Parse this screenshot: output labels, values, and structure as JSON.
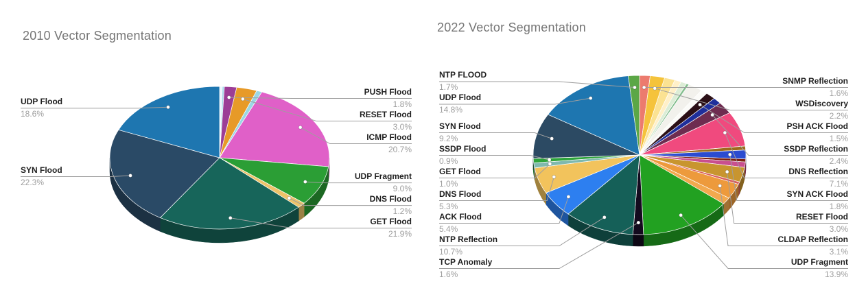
{
  "page": {
    "background": "#ffffff"
  },
  "colors": {
    "title_text": "#757575",
    "label_text": "#1f1f1f",
    "percent_text": "#9e9e9e",
    "leader_line": "#9e9e9e",
    "slice_divider": "#ffffff",
    "callout_dot": "#ffffff"
  },
  "chart_data": [
    {
      "type": "pie",
      "style": "3d",
      "title": "2010 Vector Segmentation",
      "unit": "%",
      "legend_position": "labeled-callouts",
      "slices": [
        {
          "label": "",
          "value": 0.4,
          "color": "#EAF5FC"
        },
        {
          "label": "",
          "value": 0.3,
          "color": "#A5D8E8"
        },
        {
          "label": "PUSH Flood",
          "value": 1.8,
          "color": "#9C3D96"
        },
        {
          "label": "RESET Flood",
          "value": 3.0,
          "color": "#E79A28"
        },
        {
          "label": "",
          "value": 0.8,
          "color": "#9BD7E5"
        },
        {
          "label": "ICMP Flood",
          "value": 20.7,
          "color": "#E060C8"
        },
        {
          "label": "UDP Fragment",
          "value": 9.0,
          "color": "#2B9E35"
        },
        {
          "label": "DNS Flood",
          "value": 1.2,
          "color": "#EDC36A"
        },
        {
          "label": "GET Flood",
          "value": 21.9,
          "color": "#17655A"
        },
        {
          "label": "SYN Flood",
          "value": 22.3,
          "color": "#2A4A66"
        },
        {
          "label": "UDP Flood",
          "value": 18.6,
          "color": "#1E76B0"
        }
      ]
    },
    {
      "type": "pie",
      "style": "3d",
      "title": "2022 Vector Segmentation",
      "unit": "%",
      "legend_position": "labeled-callouts",
      "slices": [
        {
          "label": "SNMP Reflection",
          "value": 1.6,
          "color": "#EC7B6E"
        },
        {
          "label": "WSDiscovery",
          "value": 2.2,
          "color": "#F5C33B"
        },
        {
          "label": "",
          "value": 1.6,
          "color": "#FBE292"
        },
        {
          "label": "",
          "value": 1.0,
          "color": "#FFF0C8"
        },
        {
          "label": "",
          "value": 0.9,
          "color": "#DCEDD6"
        },
        {
          "label": "",
          "value": 0.4,
          "color": "#83BE8E"
        },
        {
          "label": "",
          "value": 2.2,
          "color": "#F2F1EC"
        },
        {
          "label": "",
          "value": 1.0,
          "color": "#FBFBF8"
        },
        {
          "label": "PSH ACK Flood",
          "value": 1.5,
          "color": "#2B0F16"
        },
        {
          "label": "",
          "value": 1.3,
          "color": "#1F2F9B"
        },
        {
          "label": "SSDP Reflection",
          "value": 2.4,
          "color": "#6E2C50"
        },
        {
          "label": "DNS Reflection",
          "value": 7.1,
          "color": "#F04A7E"
        },
        {
          "label": "",
          "value": 0.8,
          "color": "#9C6B1D"
        },
        {
          "label": "SYN ACK Flood",
          "value": 1.8,
          "color": "#2B4BD0"
        },
        {
          "label": "",
          "value": 0.6,
          "color": "#7C1F0E"
        },
        {
          "label": "",
          "value": 1.1,
          "color": "#C94F8E"
        },
        {
          "label": "RESET Flood",
          "value": 3.0,
          "color": "#C8952F"
        },
        {
          "label": "",
          "value": 0.5,
          "color": "#D85C5C"
        },
        {
          "label": "CLDAP Reflection",
          "value": 3.1,
          "color": "#ED9A3C"
        },
        {
          "label": "",
          "value": 1.4,
          "color": "#F2A94E"
        },
        {
          "label": "UDP Fragment",
          "value": 13.9,
          "color": "#22A121"
        },
        {
          "label": "TCP Anomaly",
          "value": 1.6,
          "color": "#140A1E"
        },
        {
          "label": "NTP Reflection",
          "value": 10.7,
          "color": "#156058"
        },
        {
          "label": "ACK Flood",
          "value": 5.4,
          "color": "#2D7FF0"
        },
        {
          "label": "DNS Flood",
          "value": 5.3,
          "color": "#F2C35C"
        },
        {
          "label": "GET Flood",
          "value": 1.0,
          "color": "#7FB9AE"
        },
        {
          "label": "SSDP Flood",
          "value": 0.9,
          "color": "#2EA43B"
        },
        {
          "label": "SYN Flood",
          "value": 9.2,
          "color": "#2C4A63"
        },
        {
          "label": "UDP Flood",
          "value": 14.8,
          "color": "#1E76B0"
        },
        {
          "label": "NTP FLOOD",
          "value": 1.7,
          "color": "#5BA746"
        }
      ]
    }
  ]
}
